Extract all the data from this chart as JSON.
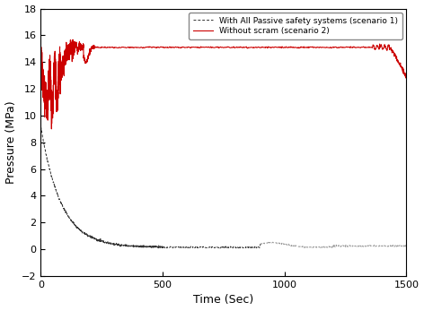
{
  "title": "",
  "xlabel": "Time (Sec)",
  "ylabel": "Pressure (MPa)",
  "xlim": [
    0,
    1500
  ],
  "ylim": [
    -2,
    18
  ],
  "xticks": [
    0,
    500,
    1000,
    1500
  ],
  "yticks": [
    -2,
    0,
    2,
    4,
    6,
    8,
    10,
    12,
    14,
    16,
    18
  ],
  "legend1": "With All Passive safety systems (scenario 1)",
  "legend2": "Without scram (scenario 2)",
  "line1_color": "#333333",
  "line2_color": "#cc0000",
  "background_color": "#ffffff"
}
